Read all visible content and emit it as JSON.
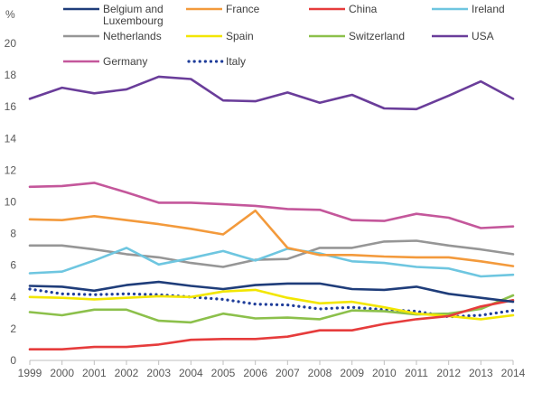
{
  "chart_data": {
    "type": "line",
    "title": "",
    "xlabel": "",
    "ylabel": "%",
    "ylim": [
      0,
      20
    ],
    "yticks": [
      0,
      2,
      4,
      6,
      8,
      10,
      12,
      14,
      16,
      18,
      20
    ],
    "grid": false,
    "legend_position": "top",
    "x": [
      1999,
      2000,
      2001,
      2002,
      2003,
      2004,
      2005,
      2006,
      2007,
      2008,
      2009,
      2010,
      2011,
      2012,
      2013,
      2014
    ],
    "series": [
      {
        "name": "Belgium and Luxembourg",
        "name_lines": [
          "Belgium and",
          "Luxembourg"
        ],
        "color": "#1f3d7a",
        "dash": false,
        "values": [
          4.7,
          4.65,
          4.4,
          4.75,
          4.95,
          4.7,
          4.5,
          4.75,
          4.85,
          4.85,
          4.5,
          4.45,
          4.65,
          4.2,
          3.95,
          3.7
        ]
      },
      {
        "name": "France",
        "name_lines": [
          "France"
        ],
        "color": "#f39a3c",
        "dash": false,
        "values": [
          8.9,
          8.85,
          9.1,
          8.85,
          8.6,
          8.3,
          7.95,
          9.45,
          7.1,
          6.65,
          6.65,
          6.55,
          6.5,
          6.5,
          6.25,
          5.95
        ]
      },
      {
        "name": "China",
        "name_lines": [
          "China"
        ],
        "color": "#e63c3c",
        "dash": false,
        "values": [
          0.7,
          0.7,
          0.85,
          0.85,
          1.0,
          1.3,
          1.35,
          1.35,
          1.5,
          1.9,
          1.9,
          2.3,
          2.6,
          2.8,
          3.4,
          3.8
        ]
      },
      {
        "name": "Ireland",
        "name_lines": [
          "Ireland"
        ],
        "color": "#6ec6e0",
        "dash": false,
        "values": [
          5.5,
          5.6,
          6.3,
          7.1,
          6.05,
          6.45,
          6.9,
          6.3,
          7.05,
          6.75,
          6.25,
          6.15,
          5.9,
          5.8,
          5.3,
          5.4
        ]
      },
      {
        "name": "Netherlands",
        "name_lines": [
          "Netherlands"
        ],
        "color": "#969696",
        "dash": false,
        "values": [
          7.25,
          7.25,
          7.0,
          6.7,
          6.5,
          6.15,
          5.9,
          6.35,
          6.4,
          7.1,
          7.1,
          7.5,
          7.55,
          7.25,
          7.0,
          6.7
        ]
      },
      {
        "name": "Spain",
        "name_lines": [
          "Spain"
        ],
        "color": "#f2e600",
        "dash": false,
        "values": [
          4.0,
          3.95,
          3.85,
          3.95,
          4.05,
          4.0,
          4.35,
          4.45,
          3.95,
          3.6,
          3.7,
          3.35,
          2.95,
          2.8,
          2.6,
          2.85
        ]
      },
      {
        "name": "Switzerland",
        "name_lines": [
          "Switzerland"
        ],
        "color": "#8cc04b",
        "dash": false,
        "values": [
          3.05,
          2.85,
          3.2,
          3.2,
          2.5,
          2.4,
          2.95,
          2.65,
          2.7,
          2.6,
          3.15,
          3.1,
          2.9,
          2.95,
          3.25,
          4.1
        ]
      },
      {
        "name": "USA",
        "name_lines": [
          "USA"
        ],
        "color": "#6a3d9a",
        "dash": false,
        "values": [
          16.5,
          17.2,
          16.85,
          17.1,
          17.9,
          17.75,
          16.4,
          16.35,
          16.9,
          16.25,
          16.75,
          15.9,
          15.85,
          16.7,
          17.6,
          16.5
        ]
      },
      {
        "name": "Germany",
        "name_lines": [
          "Germany"
        ],
        "color": "#c4579b",
        "dash": false,
        "values": [
          10.95,
          11.0,
          11.2,
          10.6,
          9.95,
          9.95,
          9.85,
          9.75,
          9.55,
          9.5,
          8.85,
          8.8,
          9.25,
          9.0,
          8.35,
          8.45
        ]
      },
      {
        "name": "Italy",
        "name_lines": [
          "Italy"
        ],
        "color": "#1f3d9a",
        "dash": true,
        "values": [
          4.5,
          4.2,
          4.15,
          4.2,
          4.15,
          4.0,
          3.85,
          3.55,
          3.5,
          3.25,
          3.35,
          3.2,
          3.1,
          2.75,
          2.85,
          3.15
        ]
      }
    ]
  }
}
